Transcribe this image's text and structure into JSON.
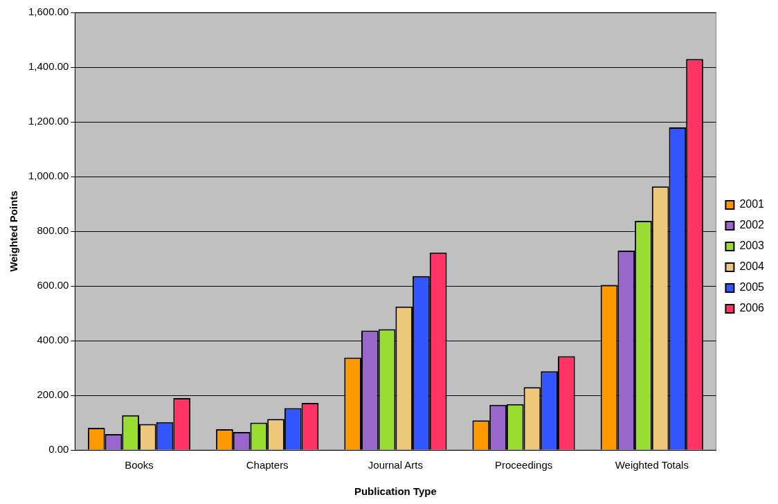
{
  "chart_data": {
    "type": "bar",
    "xlabel": "Publication Type",
    "ylabel": "Weighted Points",
    "categories": [
      "Books",
      "Chapters",
      "Journal Arts",
      "Proceedings",
      "Weighted Totals"
    ],
    "series": [
      {
        "name": "2001",
        "color": "#ff9900",
        "values": [
          81,
          76,
          338,
          108,
          604
        ]
      },
      {
        "name": "2002",
        "color": "#9966cc",
        "values": [
          58,
          66,
          437,
          165,
          729
        ]
      },
      {
        "name": "2003",
        "color": "#99dd33",
        "values": [
          127,
          100,
          442,
          168,
          838
        ]
      },
      {
        "name": "2004",
        "color": "#eec87a",
        "values": [
          95,
          113,
          525,
          230,
          964
        ]
      },
      {
        "name": "2005",
        "color": "#3355ff",
        "values": [
          102,
          153,
          636,
          288,
          1180
        ]
      },
      {
        "name": "2006",
        "color": "#ff3366",
        "values": [
          190,
          172,
          722,
          343,
          1430
        ]
      }
    ],
    "ylim": [
      0,
      1600
    ],
    "yticks": [
      {
        "value": 0,
        "label": "0.00"
      },
      {
        "value": 200,
        "label": "200.00"
      },
      {
        "value": 400,
        "label": "400.00"
      },
      {
        "value": 600,
        "label": "600.00"
      },
      {
        "value": 800,
        "label": "800.00"
      },
      {
        "value": 1000,
        "label": "1,000.00"
      },
      {
        "value": 1200,
        "label": "1,200.00"
      },
      {
        "value": 1400,
        "label": "1,400.00"
      },
      {
        "value": 1600,
        "label": "1,600.00"
      }
    ],
    "grid": "y",
    "legend": "right"
  }
}
